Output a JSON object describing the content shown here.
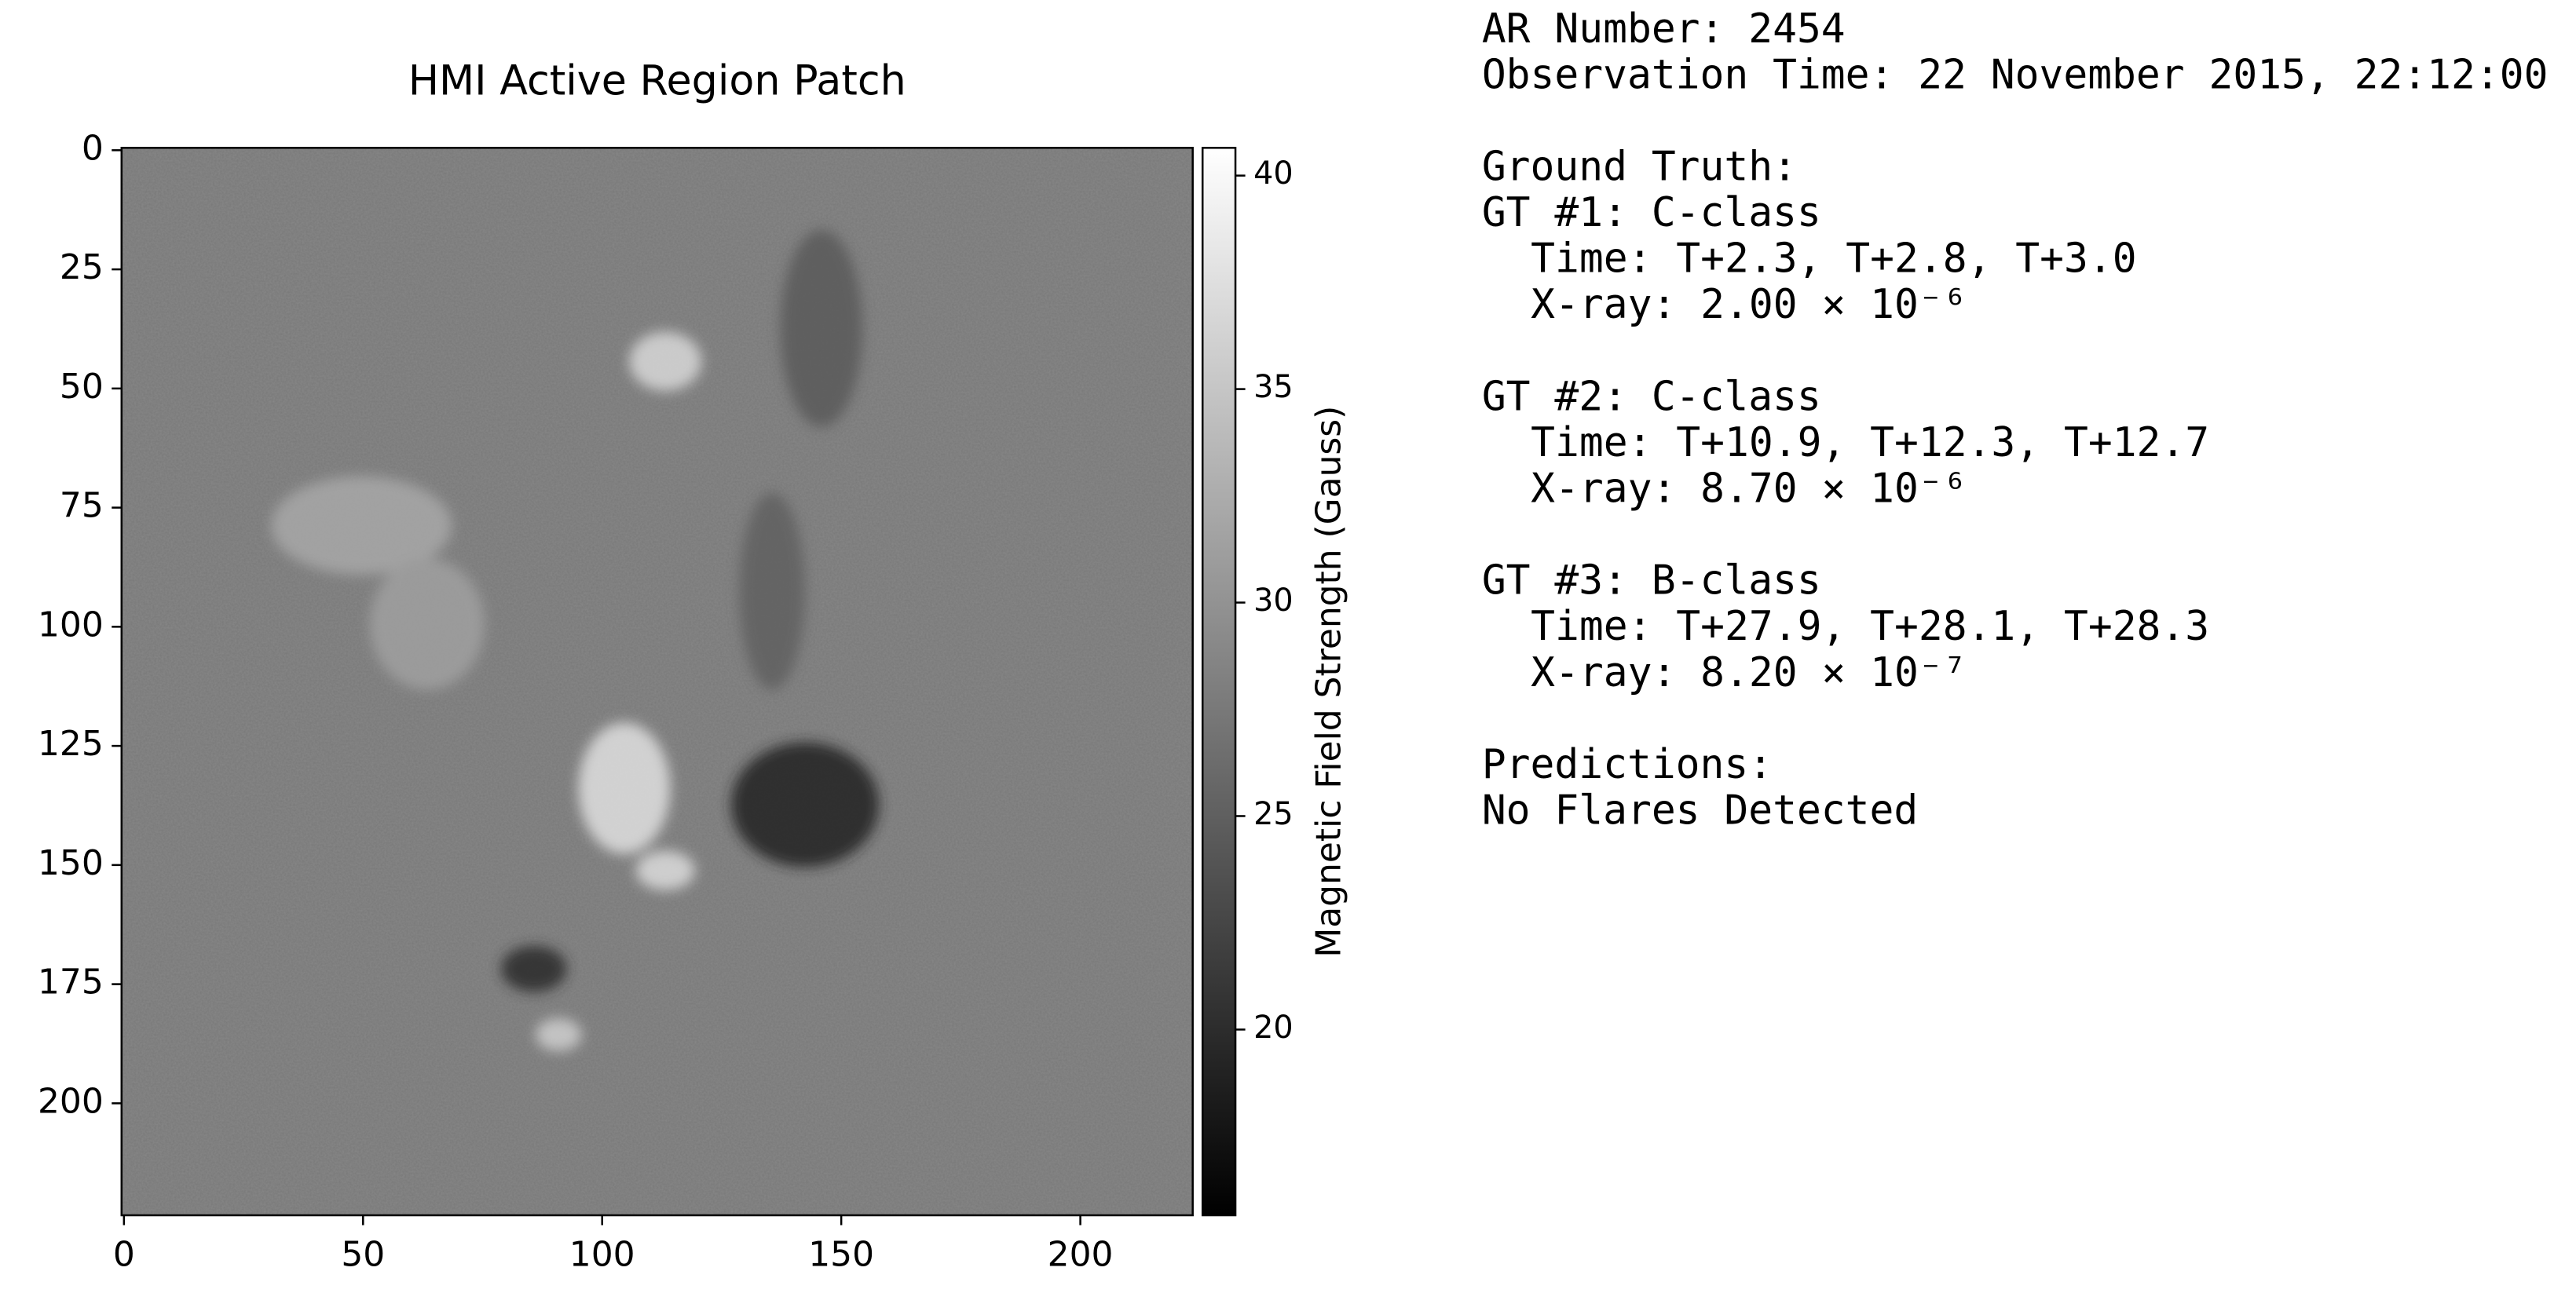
{
  "chart_data": {
    "type": "heatmap",
    "title": "HMI Active Region Patch",
    "colormap": "gray",
    "colorbar_label": "Magnetic Field Strength (Gauss)",
    "xlim": [
      -0.5,
      223.5
    ],
    "ylim": [
      223.5,
      -0.5
    ],
    "xticks": [
      0,
      50,
      100,
      150,
      200
    ],
    "yticks": [
      0,
      25,
      50,
      75,
      100,
      125,
      150,
      175,
      200
    ],
    "clim": [
      15.65,
      40.65
    ],
    "cticks": [
      20,
      25,
      30,
      35,
      40
    ]
  },
  "info_panel": {
    "header": [
      "AR Number: 2454",
      "Observation Time: 22 November 2015, 22:12:00"
    ],
    "ground_truth": {
      "title": "Ground Truth:",
      "items": [
        {
          "label": "GT #1: C-class",
          "time": "Time: T+2.3, T+2.8, T+3.0",
          "xray": "X-ray: 2.00 × 10⁻⁶"
        },
        {
          "label": "GT #2: C-class",
          "time": "Time: T+10.9, T+12.3, T+12.7",
          "xray": "X-ray: 8.70 × 10⁻⁶"
        },
        {
          "label": "GT #3: B-class",
          "time": "Time: T+27.9, T+28.1, T+28.3",
          "xray": "X-ray: 8.20 × 10⁻⁷"
        }
      ]
    },
    "predictions": {
      "title": "Predictions:",
      "result": "No Flares Detected"
    }
  }
}
